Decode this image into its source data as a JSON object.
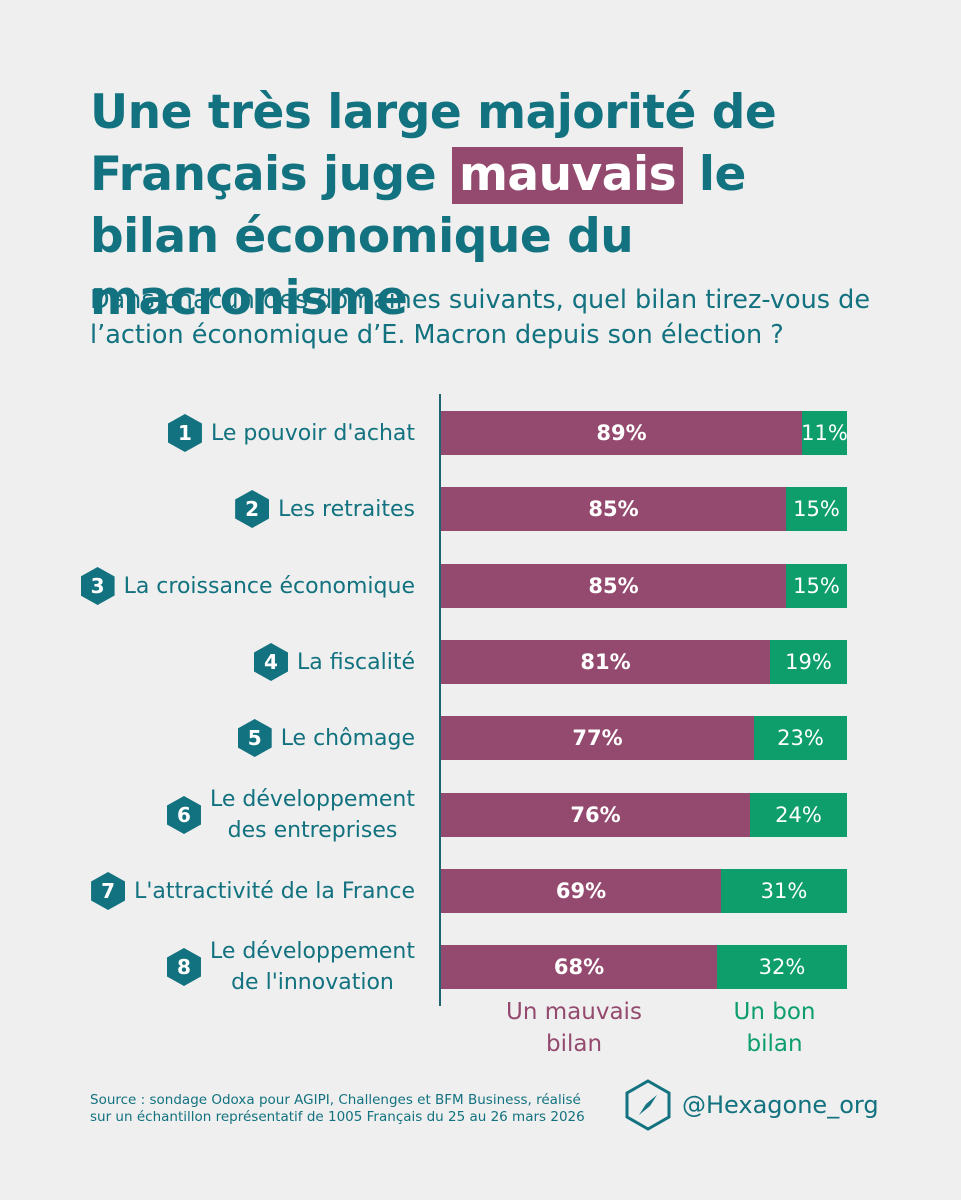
{
  "title": {
    "before": "Une très large majorité de Français juge",
    "highlight": "mauvais",
    "after": "le bilan économique du macronisme"
  },
  "subtitle": "Dans chacun des domaines suivants, quel bilan tirez-vous de l’action économique d’E. Macron depuis son élection ?",
  "colors": {
    "bad": "#944a6e",
    "good": "#0d9e6c",
    "accent": "#12727f",
    "background": "#efefef"
  },
  "chart_data": {
    "type": "bar",
    "stacked": true,
    "orientation": "horizontal",
    "categories": [
      {
        "rank": "1",
        "lines": [
          "Le pouvoir d'achat"
        ]
      },
      {
        "rank": "2",
        "lines": [
          "Les retraites"
        ]
      },
      {
        "rank": "3",
        "lines": [
          "La croissance économique"
        ]
      },
      {
        "rank": "4",
        "lines": [
          "La fiscalité"
        ]
      },
      {
        "rank": "5",
        "lines": [
          "Le chômage"
        ]
      },
      {
        "rank": "6",
        "lines": [
          "Le développement",
          "des entreprises"
        ]
      },
      {
        "rank": "7",
        "lines": [
          "L'attractivité de la France"
        ]
      },
      {
        "rank": "8",
        "lines": [
          "Le développement",
          "de l'innovation"
        ]
      }
    ],
    "series": [
      {
        "name": "Un mauvais bilan",
        "values": [
          89,
          85,
          85,
          81,
          77,
          76,
          69,
          68
        ],
        "labels": [
          "89%",
          "85%",
          "85%",
          "81%",
          "77%",
          "76%",
          "69%",
          "68%"
        ]
      },
      {
        "name": "Un bon bilan",
        "values": [
          11,
          15,
          15,
          19,
          23,
          24,
          31,
          32
        ],
        "labels": [
          "11%",
          "15%",
          "15%",
          "19%",
          "23%",
          "24%",
          "31%",
          "32%"
        ]
      }
    ],
    "xlim": [
      0,
      100
    ],
    "legend": {
      "bad": [
        "Un mauvais",
        "bilan"
      ],
      "good": [
        "Un bon",
        "bilan"
      ]
    }
  },
  "source": [
    "Source : sondage Odoxa pour AGIPI, Challenges et BFM Business, réalisé",
    "sur un échantillon représentatif de 1005 Français du 25 au 26 mars 2026"
  ],
  "brand": {
    "handle": "@Hexagone_org",
    "icon": "compass-hexagon-icon"
  }
}
